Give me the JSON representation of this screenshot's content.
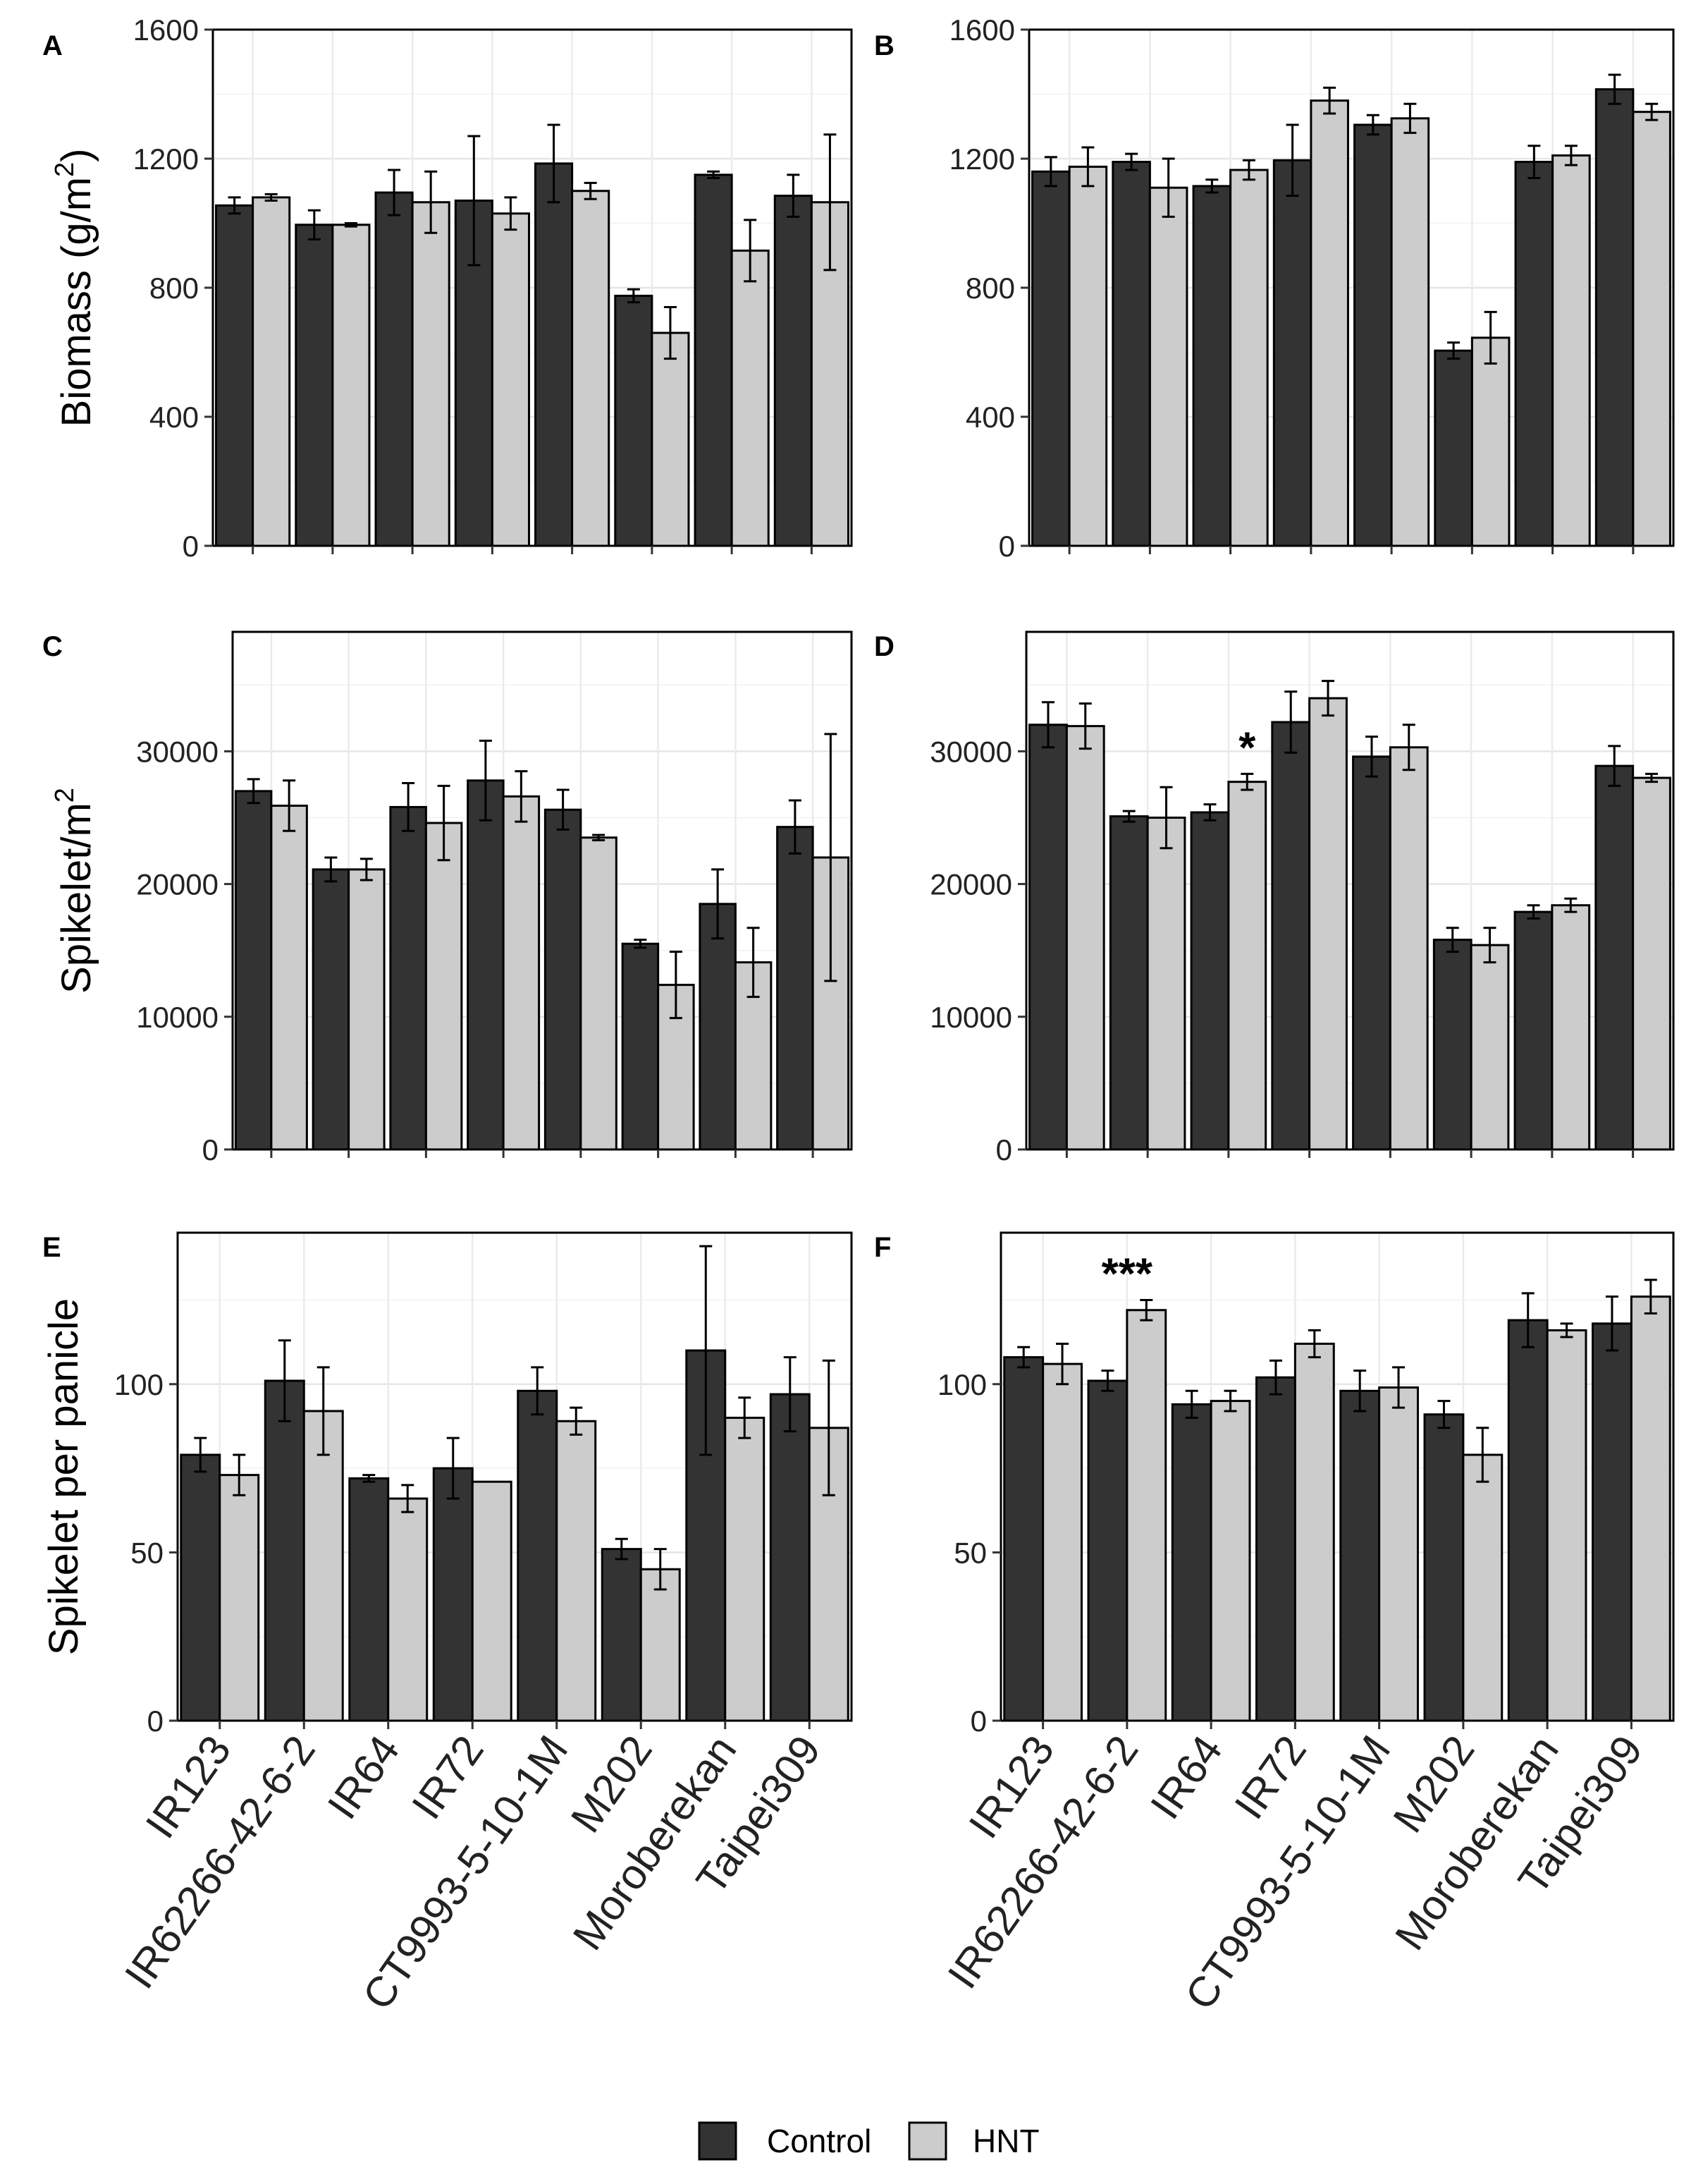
{
  "legend": {
    "control_label": "Control",
    "hnt_label": "HNT",
    "control_color": "#333333",
    "hnt_color": "#cccccc",
    "position": "bottom-center"
  },
  "categories": [
    "IR123",
    "IR62266-42-6-2",
    "IR64",
    "IR72",
    "CT9993-5-10-1M",
    "M202",
    "Moroberekan",
    "Taipei309"
  ],
  "chart_data": [
    {
      "type": "bar",
      "panel": "A",
      "ylabel": "Biomass (g/m",
      "ylabel_sup": "2",
      "ylabel_close": ")",
      "ylim": [
        0,
        1600
      ],
      "yticks": [
        0,
        400,
        800,
        1200,
        1600
      ],
      "grid": true,
      "categories": [
        "IR123",
        "IR62266-42-6-2",
        "IR64",
        "IR72",
        "CT9993-5-10-1M",
        "M202",
        "Moroberekan",
        "Taipei309"
      ],
      "series": [
        {
          "name": "Control",
          "values": [
            1055,
            995,
            1095,
            1070,
            1185,
            775,
            1150,
            1085
          ],
          "errors": [
            25,
            45,
            70,
            200,
            120,
            20,
            10,
            65
          ]
        },
        {
          "name": "HNT",
          "values": [
            1080,
            995,
            1065,
            1030,
            1100,
            660,
            915,
            1065
          ],
          "errors": [
            10,
            5,
            95,
            50,
            25,
            80,
            95,
            210
          ]
        }
      ],
      "annotations": []
    },
    {
      "type": "bar",
      "panel": "B",
      "ylabel": "",
      "ylim": [
        0,
        1600
      ],
      "yticks": [
        0,
        400,
        800,
        1200,
        1600
      ],
      "grid": true,
      "categories": [
        "IR123",
        "IR62266-42-6-2",
        "IR64",
        "IR72",
        "CT9993-5-10-1M",
        "M202",
        "Moroberekan",
        "Taipei309"
      ],
      "series": [
        {
          "name": "Control",
          "values": [
            1160,
            1190,
            1115,
            1195,
            1305,
            605,
            1190,
            1415
          ],
          "errors": [
            45,
            25,
            20,
            110,
            30,
            25,
            50,
            45
          ]
        },
        {
          "name": "HNT",
          "values": [
            1175,
            1110,
            1165,
            1380,
            1325,
            645,
            1210,
            1345
          ],
          "errors": [
            60,
            90,
            30,
            40,
            45,
            80,
            30,
            25
          ]
        }
      ],
      "annotations": []
    },
    {
      "type": "bar",
      "panel": "C",
      "ylabel": "Spikelet/m",
      "ylabel_sup": "2",
      "ylabel_close": "",
      "ylim": [
        0,
        39000
      ],
      "yticks": [
        0,
        10000,
        20000,
        30000
      ],
      "grid": true,
      "categories": [
        "IR123",
        "IR62266-42-6-2",
        "IR64",
        "IR72",
        "CT9993-5-10-1M",
        "M202",
        "Moroberekan",
        "Taipei309"
      ],
      "series": [
        {
          "name": "Control",
          "values": [
            27000,
            21100,
            25800,
            27800,
            25600,
            15500,
            18500,
            24300
          ],
          "errors": [
            900,
            900,
            1800,
            3000,
            1500,
            300,
            2600,
            2000
          ]
        },
        {
          "name": "HNT",
          "values": [
            25900,
            21100,
            24600,
            26600,
            23500,
            12400,
            14100,
            22000
          ],
          "errors": [
            1900,
            800,
            2800,
            1900,
            200,
            2500,
            2600,
            9300
          ]
        }
      ],
      "annotations": []
    },
    {
      "type": "bar",
      "panel": "D",
      "ylabel": "",
      "ylim": [
        0,
        39000
      ],
      "yticks": [
        0,
        10000,
        20000,
        30000
      ],
      "grid": true,
      "categories": [
        "IR123",
        "IR62266-42-6-2",
        "IR64",
        "IR72",
        "CT9993-5-10-1M",
        "M202",
        "Moroberekan",
        "Taipei309"
      ],
      "series": [
        {
          "name": "Control",
          "values": [
            32000,
            25100,
            25400,
            32200,
            29600,
            15800,
            17900,
            28900
          ],
          "errors": [
            1700,
            400,
            600,
            2300,
            1500,
            900,
            500,
            1500
          ]
        },
        {
          "name": "HNT",
          "values": [
            31900,
            25000,
            27700,
            34000,
            30300,
            15400,
            18400,
            28000
          ],
          "errors": [
            1700,
            2300,
            600,
            1300,
            1700,
            1300,
            500,
            300
          ]
        }
      ],
      "annotations": [
        {
          "category": "IR64",
          "text": "*"
        }
      ]
    },
    {
      "type": "bar",
      "panel": "E",
      "ylabel": "Spikelet per panicle",
      "ylim": [
        0,
        145
      ],
      "yticks": [
        0,
        50,
        100
      ],
      "grid": true,
      "categories": [
        "IR123",
        "IR62266-42-6-2",
        "IR64",
        "IR72",
        "CT9993-5-10-1M",
        "M202",
        "Moroberekan",
        "Taipei309"
      ],
      "series": [
        {
          "name": "Control",
          "values": [
            79,
            101,
            72,
            75,
            98,
            51,
            110,
            97
          ],
          "errors": [
            5,
            12,
            1,
            9,
            7,
            3,
            31,
            11
          ]
        },
        {
          "name": "HNT",
          "values": [
            73,
            92,
            66,
            71,
            89,
            45,
            90,
            87
          ],
          "errors": [
            6,
            13,
            4,
            0,
            4,
            6,
            6,
            20
          ]
        }
      ],
      "annotations": []
    },
    {
      "type": "bar",
      "panel": "F",
      "ylabel": "",
      "ylim": [
        0,
        145
      ],
      "yticks": [
        0,
        50,
        100
      ],
      "grid": true,
      "categories": [
        "IR123",
        "IR62266-42-6-2",
        "IR64",
        "IR72",
        "CT9993-5-10-1M",
        "M202",
        "Moroberekan",
        "Taipei309"
      ],
      "series": [
        {
          "name": "Control",
          "values": [
            108,
            101,
            94,
            102,
            98,
            91,
            119,
            118
          ],
          "errors": [
            3,
            3,
            4,
            5,
            6,
            4,
            8,
            8
          ]
        },
        {
          "name": "HNT",
          "values": [
            106,
            122,
            95,
            112,
            99,
            79,
            116,
            126
          ],
          "errors": [
            6,
            3,
            3,
            4,
            6,
            8,
            2,
            5
          ]
        }
      ],
      "annotations": [
        {
          "category": "IR62266-42-6-2",
          "text": "***"
        }
      ]
    }
  ]
}
